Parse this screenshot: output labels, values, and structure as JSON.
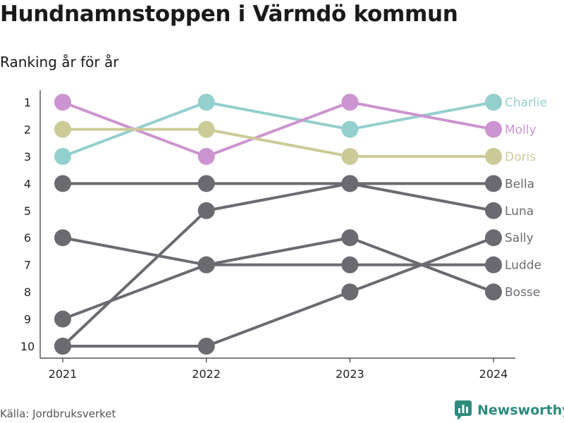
{
  "header": {
    "title": "Hundnamnstoppen i Värmdö kommun",
    "subtitle": "Ranking år för år"
  },
  "footer": {
    "source": "Källa: Jordbruksverket",
    "brand": "Newsworthy",
    "brand_icon": "newsworthy-logo-icon"
  },
  "colors": {
    "teal": "#93cfcd",
    "pink": "#cc94d0",
    "olive": "#cccb98",
    "gray": "#6b6a70",
    "brand": "#2e8b7e"
  },
  "chart_data": {
    "type": "line",
    "title": "Hundnamnstoppen i Värmdö kommun",
    "subtitle": "Ranking år för år",
    "x": [
      "2021",
      "2022",
      "2023",
      "2024"
    ],
    "y_ticks": [
      "1",
      "2",
      "3",
      "4",
      "5",
      "6",
      "7",
      "8",
      "9",
      "10"
    ],
    "y_inverted": true,
    "ylim": [
      1,
      10
    ],
    "legend": "end-of-line labels",
    "grid": false,
    "series": [
      {
        "name": "Charlie",
        "values": [
          3,
          1,
          2,
          1
        ],
        "color": "#93cfcd"
      },
      {
        "name": "Molly",
        "values": [
          1,
          3,
          1,
          2
        ],
        "color": "#cc94d0"
      },
      {
        "name": "Doris",
        "values": [
          2,
          2,
          3,
          3
        ],
        "color": "#cccb98"
      },
      {
        "name": "Bella",
        "values": [
          4,
          4,
          4,
          4
        ],
        "color": "#6b6a70"
      },
      {
        "name": "Luna",
        "values": [
          10,
          5,
          4,
          5
        ],
        "color": "#6b6a70"
      },
      {
        "name": "Sally",
        "values": [
          10,
          10,
          8,
          6
        ],
        "color": "#6b6a70"
      },
      {
        "name": "Ludde",
        "values": [
          9,
          7,
          7,
          7
        ],
        "color": "#6b6a70"
      },
      {
        "name": "Bosse",
        "values": [
          6,
          7,
          6,
          8
        ],
        "color": "#6b6a70"
      }
    ]
  }
}
